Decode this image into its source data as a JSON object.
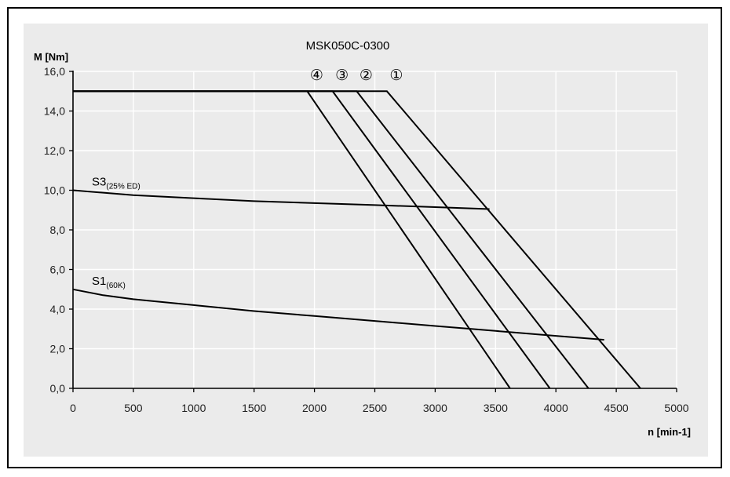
{
  "chart_data": {
    "type": "line",
    "title": "MSK050C-0300",
    "xlabel": "n [min-1]",
    "ylabel": "M [Nm]",
    "xlim": [
      0,
      5000
    ],
    "ylim": [
      0,
      16
    ],
    "x_ticks": [
      0,
      500,
      1000,
      1500,
      2000,
      2500,
      3000,
      3500,
      4000,
      4500,
      5000
    ],
    "x_tick_labels": [
      "0",
      "500",
      "1000",
      "1500",
      "2000",
      "2500",
      "3000",
      "3500",
      "4000",
      "4500",
      "5000"
    ],
    "y_ticks": [
      0,
      2,
      4,
      6,
      8,
      10,
      12,
      14,
      16
    ],
    "y_tick_labels": [
      "0,0",
      "2,0",
      "4,0",
      "6,0",
      "8,0",
      "10,0",
      "12,0",
      "14,0",
      "16,0"
    ],
    "grid": true,
    "series": [
      {
        "name": "①",
        "x": [
          0,
          2600,
          4700
        ],
        "y": [
          15,
          15,
          0
        ]
      },
      {
        "name": "②",
        "x": [
          0,
          2350,
          4270
        ],
        "y": [
          15,
          15,
          0
        ]
      },
      {
        "name": "③",
        "x": [
          0,
          2150,
          3950
        ],
        "y": [
          15,
          15,
          0
        ]
      },
      {
        "name": "④",
        "x": [
          0,
          1940,
          3620
        ],
        "y": [
          15,
          15,
          0
        ]
      },
      {
        "name": "S3(25% ED)",
        "label_main": "S3",
        "label_sub": "(25% ED)",
        "x": [
          0,
          500,
          1000,
          1500,
          2000,
          2500,
          3000,
          3450
        ],
        "y": [
          10.0,
          9.75,
          9.6,
          9.45,
          9.35,
          9.25,
          9.15,
          9.05
        ]
      },
      {
        "name": "S1(60K)",
        "label_main": "S1",
        "label_sub": "(60K)",
        "x": [
          0,
          250,
          500,
          1000,
          1500,
          2000,
          2500,
          3000,
          3500,
          4000,
          4400
        ],
        "y": [
          5.0,
          4.7,
          4.5,
          4.2,
          3.9,
          3.65,
          3.4,
          3.15,
          2.9,
          2.65,
          2.45
        ]
      }
    ]
  },
  "colors": {
    "line": "#000000",
    "grid": "#ffffff",
    "background": "#ebebeb"
  }
}
